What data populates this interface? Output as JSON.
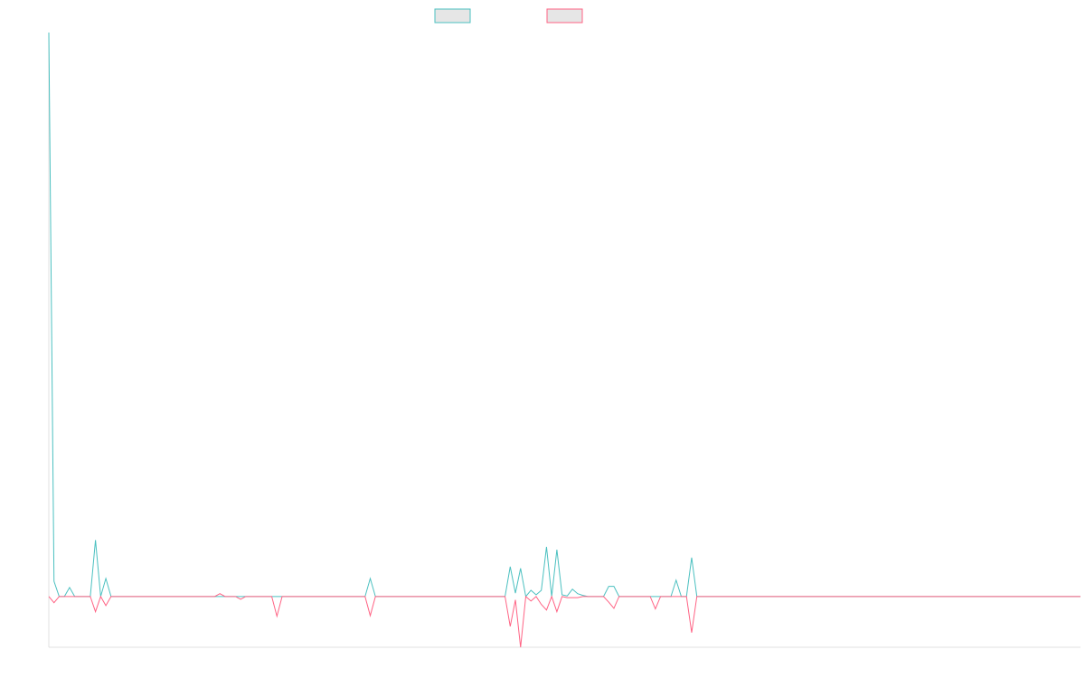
{
  "chart_data": {
    "type": "line",
    "ylim": [
      -9,
      100
    ],
    "series": [
      {
        "color": "#4bc0c0",
        "values": [
          100,
          2.7,
          0,
          0,
          1.6,
          0,
          0,
          0,
          0,
          10,
          0,
          3.2,
          0,
          0,
          0,
          0,
          0,
          0,
          0,
          0,
          0,
          0,
          0,
          0,
          0,
          0,
          0,
          0,
          0,
          0,
          0,
          0,
          0,
          0,
          0,
          0,
          0,
          0,
          0,
          0,
          0,
          0,
          0,
          0,
          0,
          0,
          0,
          0,
          0,
          0,
          0,
          0,
          0,
          0,
          0,
          0,
          0,
          0,
          0,
          0,
          0,
          0,
          3.2,
          0,
          0,
          0,
          0,
          0,
          0,
          0,
          0,
          0,
          0,
          0,
          0,
          0,
          0,
          0,
          0,
          0,
          0,
          0,
          0,
          0,
          0,
          0,
          0,
          0,
          0,
          5.3,
          0.6,
          5,
          0,
          1.1,
          0.3,
          1.1,
          8.8,
          0,
          8.3,
          0.3,
          0.1,
          1.3,
          0.5,
          0.2,
          0,
          0,
          0,
          0,
          1.8,
          1.8,
          0,
          0,
          0,
          0,
          0,
          0,
          0,
          0,
          0,
          0,
          0,
          2.9,
          0,
          0,
          6.9,
          0,
          0,
          0,
          0,
          0,
          0,
          0,
          0,
          0,
          0,
          0,
          0,
          0,
          0,
          0,
          0,
          0,
          0,
          0,
          0,
          0,
          0,
          0,
          0,
          0,
          0,
          0,
          0,
          0,
          0,
          0,
          0,
          0,
          0,
          0,
          0,
          0,
          0,
          0,
          0,
          0,
          0,
          0,
          0,
          0,
          0,
          0,
          0,
          0,
          0,
          0,
          0,
          0,
          0,
          0,
          0,
          0,
          0,
          0,
          0,
          0,
          0,
          0,
          0,
          0,
          0,
          0,
          0,
          0,
          0,
          0,
          0,
          0,
          0,
          0
        ]
      },
      {
        "color": "#ff6384",
        "values": [
          0,
          -1.1,
          0,
          0,
          0,
          0,
          0,
          0,
          0,
          -2.7,
          0,
          -1.6,
          0,
          0,
          0,
          0,
          0,
          0,
          0,
          0,
          0,
          0,
          0,
          0,
          0,
          0,
          0,
          0,
          0,
          0,
          0,
          0,
          0,
          0.5,
          0,
          0,
          0,
          -0.5,
          0,
          0,
          0,
          0,
          0,
          0,
          -3.5,
          0,
          0,
          0,
          0,
          0,
          0,
          0,
          0,
          0,
          0,
          0,
          0,
          0,
          0,
          0,
          0,
          0,
          -3.4,
          0,
          0,
          0,
          0,
          0,
          0,
          0,
          0,
          0,
          0,
          0,
          0,
          0,
          0,
          0,
          0,
          0,
          0,
          0,
          0,
          0,
          0,
          0,
          0,
          0,
          0,
          -5.3,
          -0.6,
          -9,
          0,
          -0.8,
          0,
          -1.4,
          -2.4,
          0,
          -2.7,
          0,
          -0.2,
          -0.2,
          -0.2,
          0,
          0,
          0,
          0,
          0,
          -1,
          -2.1,
          0,
          0,
          0,
          0,
          0,
          0,
          0,
          -2.2,
          0,
          0,
          0,
          0,
          0,
          0,
          -6.4,
          0,
          0,
          0,
          0,
          0,
          0,
          0,
          0,
          0,
          0,
          0,
          0,
          0,
          0,
          0,
          0,
          0,
          0,
          0,
          0,
          0,
          0,
          0,
          0,
          0,
          0,
          0,
          0,
          0,
          0,
          0,
          0,
          0,
          0,
          0,
          0,
          0,
          0,
          0,
          0,
          0,
          0,
          0,
          0,
          0,
          0,
          0,
          0,
          0,
          0,
          0,
          0,
          0,
          0,
          0,
          0,
          0,
          0,
          0,
          0,
          0,
          0,
          0,
          0,
          0,
          0,
          0,
          0,
          0,
          0,
          0,
          0,
          0,
          0,
          0
        ]
      }
    ]
  }
}
